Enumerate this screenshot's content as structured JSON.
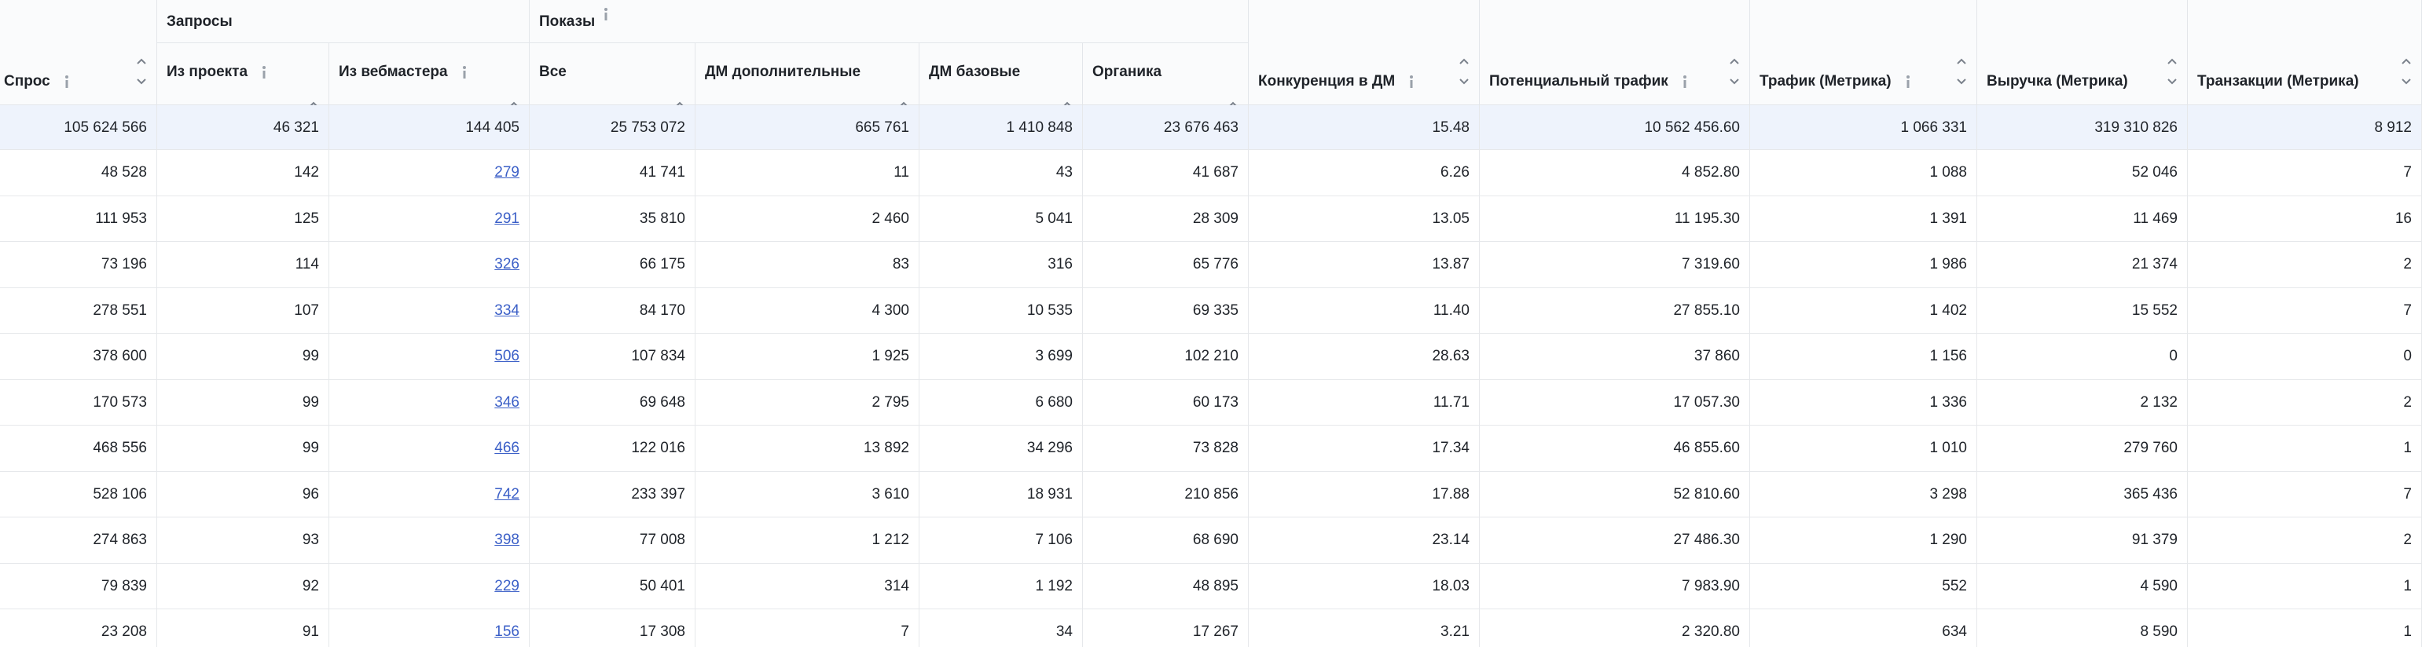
{
  "columns": [
    {
      "label": "Спрос"
    },
    {
      "group": "Запросы",
      "subcolumns": [
        "Из проекта",
        "Из вебмастера"
      ]
    },
    {
      "group": "Показы",
      "subcolumns": [
        "Все",
        "ДМ дополнительные",
        "ДМ базовые",
        "Органика"
      ]
    },
    {
      "label": "Конкуренция в ДМ"
    },
    {
      "label": "Потенциальный трафик"
    },
    {
      "label": "Трафик (Метрика)"
    },
    {
      "label": "Выручка (Метрика)"
    },
    {
      "label": "Транзакции (Метрика)"
    }
  ],
  "total": [
    "105 624 566",
    "46 321",
    "144 405",
    "25 753 072",
    "665 761",
    "1 410 848",
    "23 676 463",
    "15.48",
    "10 562 456.60",
    "1 066 331",
    "319 310 826",
    "8 912"
  ],
  "rows": [
    [
      "48 528",
      "142",
      "279",
      "41 741",
      "11",
      "43",
      "41 687",
      "6.26",
      "4 852.80",
      "1 088",
      "52 046",
      "7"
    ],
    [
      "111 953",
      "125",
      "291",
      "35 810",
      "2 460",
      "5 041",
      "28 309",
      "13.05",
      "11 195.30",
      "1 391",
      "11 469",
      "16"
    ],
    [
      "73 196",
      "114",
      "326",
      "66 175",
      "83",
      "316",
      "65 776",
      "13.87",
      "7 319.60",
      "1 986",
      "21 374",
      "2"
    ],
    [
      "278 551",
      "107",
      "334",
      "84 170",
      "4 300",
      "10 535",
      "69 335",
      "11.40",
      "27 855.10",
      "1 402",
      "15 552",
      "7"
    ],
    [
      "378 600",
      "99",
      "506",
      "107 834",
      "1 925",
      "3 699",
      "102 210",
      "28.63",
      "37 860",
      "1 156",
      "0",
      "0"
    ],
    [
      "170 573",
      "99",
      "346",
      "69 648",
      "2 795",
      "6 680",
      "60 173",
      "11.71",
      "17 057.30",
      "1 336",
      "2 132",
      "2"
    ],
    [
      "468 556",
      "99",
      "466",
      "122 016",
      "13 892",
      "34 296",
      "73 828",
      "17.34",
      "46 855.60",
      "1 010",
      "279 760",
      "1"
    ],
    [
      "528 106",
      "96",
      "742",
      "233 397",
      "3 610",
      "18 931",
      "210 856",
      "17.88",
      "52 810.60",
      "3 298",
      "365 436",
      "7"
    ],
    [
      "274 863",
      "93",
      "398",
      "77 008",
      "1 212",
      "7 106",
      "68 690",
      "23.14",
      "27 486.30",
      "1 290",
      "91 379",
      "2"
    ],
    [
      "79 839",
      "92",
      "229",
      "50 401",
      "314",
      "1 192",
      "48 895",
      "18.03",
      "7 983.90",
      "552",
      "4 590",
      "1"
    ],
    [
      "23 208",
      "91",
      "156",
      "17 308",
      "7",
      "34",
      "17 267",
      "3.21",
      "2 320.80",
      "634",
      "8 590",
      "1"
    ]
  ]
}
